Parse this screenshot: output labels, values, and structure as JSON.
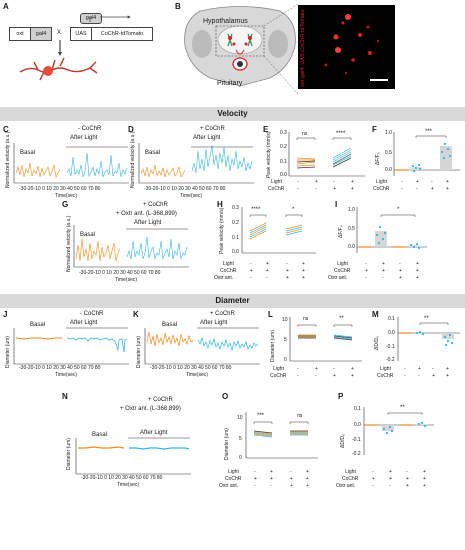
{
  "panels": {
    "A": "A",
    "B": "B",
    "C": "C",
    "D": "D",
    "E": "E",
    "F": "F",
    "G": "G",
    "H": "H",
    "I": "I",
    "J": "J",
    "K": "K",
    "L": "L",
    "M": "M",
    "N": "N",
    "O": "O",
    "P": "P"
  },
  "schematic_a": {
    "oxt": "oxt",
    "gal4_left": "gal4",
    "x": "X",
    "gal4_top": "gal4",
    "uas": "UAS",
    "construct": "CoChR-tdTomato"
  },
  "schematic_b": {
    "hypothalamus": "Hypothalamus",
    "pituitary": "Pituitary",
    "micro_label": "oxt:gal4; UAS:CoChR-tdTomato"
  },
  "sections": {
    "velocity": "Velocity",
    "diameter": "Diameter"
  },
  "trace_labels": {
    "basal": "Basal",
    "after_light": "After Light",
    "minus_cochr": "- CoChR",
    "plus_cochr": "+ CoChR",
    "plus_cochr_g": "+ CoChR",
    "oxtr_ant_g": "+ Oxtr ant. (L-368,899)",
    "oxtr_ant_n": "+ Oxtr ant. (L-368,899)",
    "time_axis": "Time(sec)",
    "ticks": "-30-20-10  0  10 20 30 40 50 60 70 80",
    "ticks_n": "-30-20-10  0  10 20 30 40 50 60 70 80"
  },
  "axes": {
    "norm_velocity": "Normalized velocity (a.u.)",
    "peak_velocity": "Peak velocity (mm/s)",
    "dff": "ΔF/F₀",
    "diameter": "Diameter (um)",
    "dd": "ΔD/D₀"
  },
  "ytick_sets": {
    "vel_e": [
      "0.3",
      "0.2",
      "0.1",
      "0.0"
    ],
    "vel_f": [
      "1.0",
      "0.5",
      "0.0"
    ],
    "vel_h": [
      "0.3",
      "0.2",
      "0.1",
      "0.0"
    ],
    "vel_i": [
      "1.0",
      "0.5",
      "0.0"
    ],
    "diam": [
      "10",
      "5",
      "0"
    ],
    "dd": [
      "0.1",
      "0.0",
      "-0.1",
      "-0.2"
    ]
  },
  "conditions": {
    "light": "Light",
    "cochr": "CoChR",
    "oxtr": "Oxtr ant.",
    "e_light": [
      "-",
      "+",
      "-",
      "+"
    ],
    "e_cochr": [
      "-",
      "-",
      "+",
      "+"
    ],
    "h_light": [
      "-",
      "+",
      "-",
      "+"
    ],
    "h_cochr": [
      "+",
      "+",
      "+",
      "+"
    ],
    "h_oxtr": [
      "-",
      "-",
      "+",
      "+"
    ]
  },
  "significance": {
    "e1": "ns",
    "e2": "****",
    "f": "***",
    "h1": "****",
    "h2": "*",
    "i": "*",
    "l1": "ns",
    "l2": "**",
    "m": "**",
    "o1": "***",
    "o2": "ns",
    "p": "**"
  },
  "colors": {
    "orange": "#f08c1a",
    "blue": "#33b5e5",
    "red": "#e02020"
  }
}
